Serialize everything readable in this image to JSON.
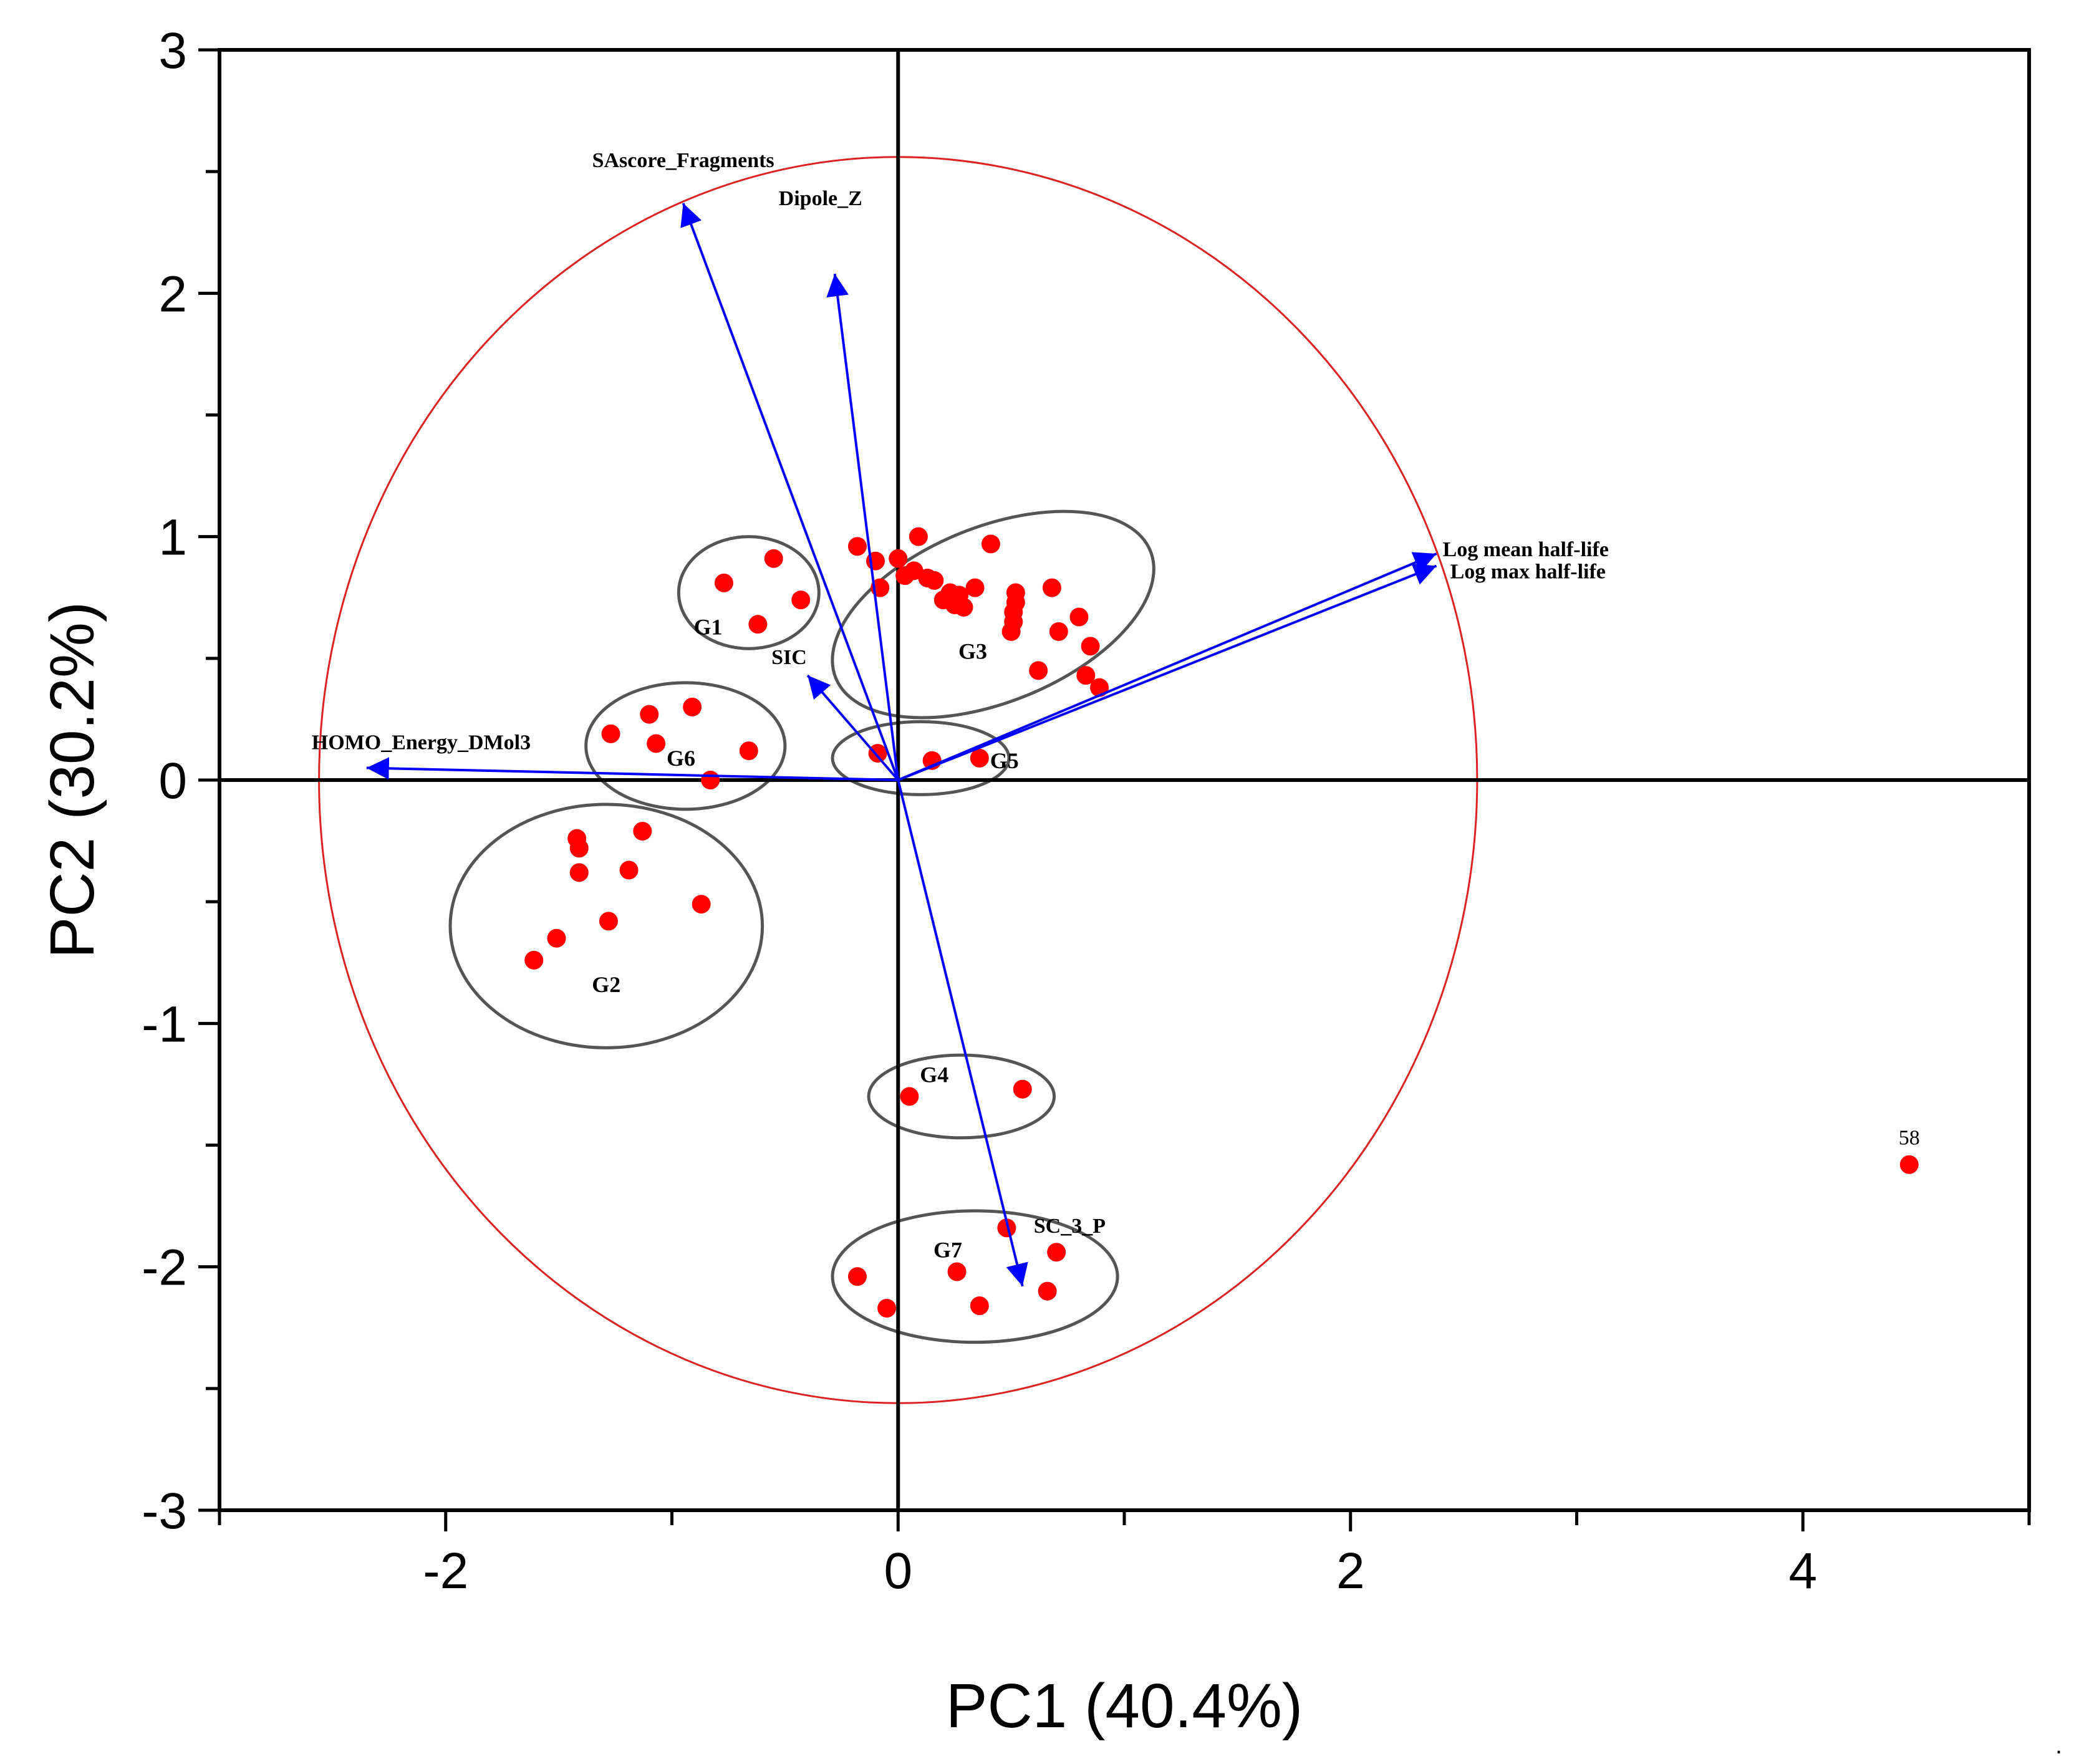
{
  "chart_data": {
    "type": "scatter",
    "subtype": "pca-biplot",
    "xlabel": "PC1 (40.4%)",
    "ylabel": "PC2 (30.2%)",
    "xlim": [
      -3,
      5
    ],
    "ylim": [
      -3,
      3
    ],
    "x_ticks": [
      -2,
      0,
      2,
      4
    ],
    "x_tick_labels": [
      "-2",
      "0",
      "2",
      "4"
    ],
    "y_ticks": [
      -3,
      -2,
      -1,
      0,
      1,
      2,
      3
    ],
    "y_tick_labels": [
      "-3",
      "-2",
      "-1",
      "0",
      "1",
      "2",
      "3"
    ],
    "colors": {
      "points": "#ff0000",
      "vectors": "#0000ff",
      "circle": "#dd2222",
      "groups": "#555555",
      "axes": "#000000"
    },
    "correlation_circle": {
      "cx": 0,
      "cy": 0,
      "rx": 2.56,
      "ry": 2.56
    },
    "loadings": [
      {
        "name": "SAscore_Fragments",
        "x": -0.95,
        "y": 2.37
      },
      {
        "name": "Dipole_Z",
        "x": -0.28,
        "y": 2.08
      },
      {
        "name": "Log mean half-life",
        "x": 2.38,
        "y": 0.93
      },
      {
        "name": "Log max half-life",
        "x": 2.38,
        "y": 0.88
      },
      {
        "name": "SIC",
        "x": -0.4,
        "y": 0.43
      },
      {
        "name": "HOMO_Energy_DMol3",
        "x": -2.35,
        "y": 0.05
      },
      {
        "name": "SC_3_P",
        "x": 0.55,
        "y": -2.08
      }
    ],
    "groups": [
      {
        "name": "G1",
        "cx": -0.66,
        "cy": 0.77,
        "rx": 0.31,
        "ry": 0.23,
        "label_x": -0.84,
        "label_y": 0.62
      },
      {
        "name": "G2",
        "cx": -1.29,
        "cy": -0.6,
        "rx": 0.69,
        "ry": 0.5,
        "label_x": -1.29,
        "label_y": -0.85
      },
      {
        "name": "G3",
        "cx": 0.42,
        "cy": 0.68,
        "rx": 0.75,
        "ry": 0.36,
        "angle": -22,
        "label_x": 0.33,
        "label_y": 0.52
      },
      {
        "name": "G4",
        "cx": 0.28,
        "cy": -1.3,
        "rx": 0.41,
        "ry": 0.17,
        "label_x": 0.16,
        "label_y": -1.22
      },
      {
        "name": "G5",
        "cx": 0.1,
        "cy": 0.09,
        "rx": 0.39,
        "ry": 0.15,
        "label_x": 0.47,
        "label_y": 0.07
      },
      {
        "name": "G6",
        "cx": -0.94,
        "cy": 0.14,
        "rx": 0.44,
        "ry": 0.26,
        "label_x": -0.96,
        "label_y": 0.08
      },
      {
        "name": "G7",
        "cx": 0.34,
        "cy": -2.04,
        "rx": 0.63,
        "ry": 0.27,
        "label_x": 0.22,
        "label_y": -1.94
      }
    ],
    "points": [
      {
        "x": -0.77,
        "y": 0.81
      },
      {
        "x": -0.55,
        "y": 0.91
      },
      {
        "x": -0.43,
        "y": 0.74
      },
      {
        "x": -0.62,
        "y": 0.64
      },
      {
        "x": -1.42,
        "y": -0.24
      },
      {
        "x": -1.41,
        "y": -0.28
      },
      {
        "x": -1.13,
        "y": -0.21
      },
      {
        "x": -1.41,
        "y": -0.38
      },
      {
        "x": -1.19,
        "y": -0.37
      },
      {
        "x": -0.87,
        "y": -0.51
      },
      {
        "x": -1.28,
        "y": -0.58
      },
      {
        "x": -1.51,
        "y": -0.65
      },
      {
        "x": -1.61,
        "y": -0.74
      },
      {
        "x": -0.18,
        "y": 0.96
      },
      {
        "x": -0.1,
        "y": 0.9
      },
      {
        "x": 0.0,
        "y": 0.91
      },
      {
        "x": 0.09,
        "y": 1.0
      },
      {
        "x": 0.41,
        "y": 0.97
      },
      {
        "x": -0.08,
        "y": 0.79
      },
      {
        "x": 0.03,
        "y": 0.84
      },
      {
        "x": 0.07,
        "y": 0.86
      },
      {
        "x": 0.13,
        "y": 0.83
      },
      {
        "x": 0.16,
        "y": 0.82
      },
      {
        "x": 0.23,
        "y": 0.77
      },
      {
        "x": 0.27,
        "y": 0.76
      },
      {
        "x": 0.34,
        "y": 0.79
      },
      {
        "x": 0.2,
        "y": 0.74
      },
      {
        "x": 0.25,
        "y": 0.72
      },
      {
        "x": 0.29,
        "y": 0.71
      },
      {
        "x": 0.52,
        "y": 0.77
      },
      {
        "x": 0.52,
        "y": 0.73
      },
      {
        "x": 0.51,
        "y": 0.69
      },
      {
        "x": 0.51,
        "y": 0.65
      },
      {
        "x": 0.5,
        "y": 0.61
      },
      {
        "x": 0.68,
        "y": 0.79
      },
      {
        "x": 0.8,
        "y": 0.67
      },
      {
        "x": 0.71,
        "y": 0.61
      },
      {
        "x": 0.85,
        "y": 0.55
      },
      {
        "x": 0.62,
        "y": 0.45
      },
      {
        "x": 0.83,
        "y": 0.43
      },
      {
        "x": 0.89,
        "y": 0.38
      },
      {
        "x": -1.27,
        "y": 0.19
      },
      {
        "x": -1.1,
        "y": 0.27
      },
      {
        "x": -0.91,
        "y": 0.3
      },
      {
        "x": -1.07,
        "y": 0.15
      },
      {
        "x": -0.66,
        "y": 0.12
      },
      {
        "x": -0.83,
        "y": 0.0
      },
      {
        "x": -0.09,
        "y": 0.11
      },
      {
        "x": 0.15,
        "y": 0.08
      },
      {
        "x": 0.36,
        "y": 0.09
      },
      {
        "x": 0.05,
        "y": -1.3
      },
      {
        "x": 0.55,
        "y": -1.27
      },
      {
        "x": 0.48,
        "y": -1.84
      },
      {
        "x": 0.7,
        "y": -1.94
      },
      {
        "x": 0.26,
        "y": -2.02
      },
      {
        "x": -0.18,
        "y": -2.04
      },
      {
        "x": -0.05,
        "y": -2.17
      },
      {
        "x": 0.36,
        "y": -2.16
      },
      {
        "x": 0.66,
        "y": -2.1
      },
      {
        "x": 4.47,
        "y": -1.58,
        "label": "58"
      }
    ],
    "trailing_mark": "."
  }
}
